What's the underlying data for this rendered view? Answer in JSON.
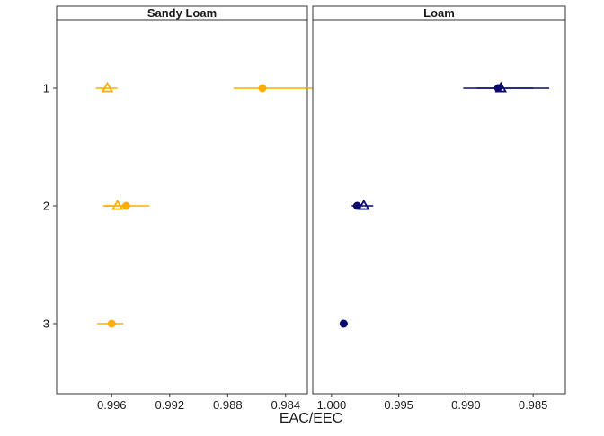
{
  "chart_data": {
    "type": "scatter",
    "xlabel": "EAC/EEC",
    "ylabel": "",
    "y_categories": [
      "1",
      "2",
      "3"
    ],
    "y_reversed": true,
    "colors": {
      "Sandy Loam": "#FFAE00",
      "Loam": "#0B0B6E",
      "frame": "#333333",
      "strip_fill": "#ffffff"
    },
    "panels": [
      {
        "title": "Sandy Loam",
        "x_reversed": true,
        "xlim": [
          0.9998,
          0.9825
        ],
        "x_ticks": [
          0.996,
          0.992,
          0.988,
          0.984
        ],
        "x_tick_labels": [
          "0.996",
          "0.992",
          "0.988",
          "0.984"
        ],
        "series": [
          {
            "marker": "circle-filled",
            "points": [
              {
                "y": "1",
                "x": 0.9856,
                "xmin": 0.9812,
                "xmax": 0.9876
              },
              {
                "y": "2",
                "x": 0.995,
                "xmin": 0.9934,
                "xmax": 0.9966
              },
              {
                "y": "3",
                "x": 0.996,
                "xmin": 0.9952,
                "xmax": 0.997
              }
            ]
          },
          {
            "marker": "triangle-open",
            "points": [
              {
                "y": "1",
                "x": 0.9963,
                "xmin": 0.9956,
                "xmax": 0.9971
              },
              {
                "y": "2",
                "x": 0.9956,
                "xmin": 0.995,
                "xmax": 0.9965
              }
            ]
          }
        ]
      },
      {
        "title": "Loam",
        "x_reversed": true,
        "xlim": [
          1.0014,
          0.9826
        ],
        "x_ticks": [
          1.0,
          0.995,
          0.99,
          0.985
        ],
        "x_tick_labels": [
          "1.000",
          "0.995",
          "0.990",
          "0.985"
        ],
        "series": [
          {
            "marker": "circle-filled",
            "points": [
              {
                "y": "1",
                "x": 0.9876,
                "xmin": 0.9838,
                "xmax": 0.9902
              },
              {
                "y": "2",
                "x": 0.9981,
                "xmin": 0.9978,
                "xmax": 0.9985
              },
              {
                "y": "3",
                "x": 0.9991,
                "xmin": 0.9988,
                "xmax": 0.9994
              }
            ]
          },
          {
            "marker": "triangle-open",
            "points": [
              {
                "y": "1",
                "x": 0.9874,
                "xmin": 0.985,
                "xmax": 0.9892
              },
              {
                "y": "2",
                "x": 0.9976,
                "xmin": 0.9969,
                "xmax": 0.9983
              }
            ]
          }
        ]
      }
    ]
  }
}
